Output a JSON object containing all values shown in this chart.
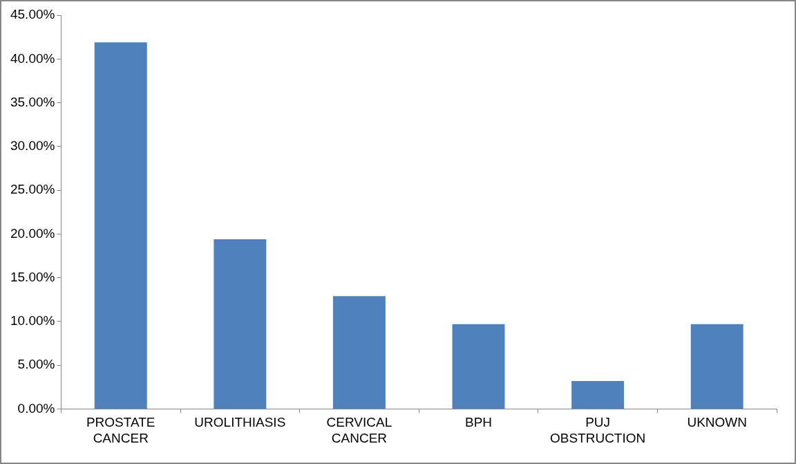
{
  "chart_data": {
    "type": "bar",
    "categories": [
      "PROSTATE CANCER",
      "UROLITHIASIS",
      "CERVICAL CANCER",
      "BPH",
      "PUJ OBSTRUCTION",
      "UKNOWN"
    ],
    "values": [
      41.9,
      19.4,
      12.9,
      9.7,
      3.2,
      9.7
    ],
    "color": "#4f81bd",
    "ylim": [
      0,
      45
    ],
    "yticks": [
      {
        "value": 0,
        "label": "0.00%"
      },
      {
        "value": 5,
        "label": "5.00%"
      },
      {
        "value": 10,
        "label": "10.00%"
      },
      {
        "value": 15,
        "label": "15.00%"
      },
      {
        "value": 20,
        "label": "20.00%"
      },
      {
        "value": 25,
        "label": "25.00%"
      },
      {
        "value": 30,
        "label": "30.00%"
      },
      {
        "value": 35,
        "label": "35.00%"
      },
      {
        "value": 40,
        "label": "40.00%"
      },
      {
        "value": 45,
        "label": "45.00%"
      }
    ],
    "grid": false,
    "legend": false
  }
}
